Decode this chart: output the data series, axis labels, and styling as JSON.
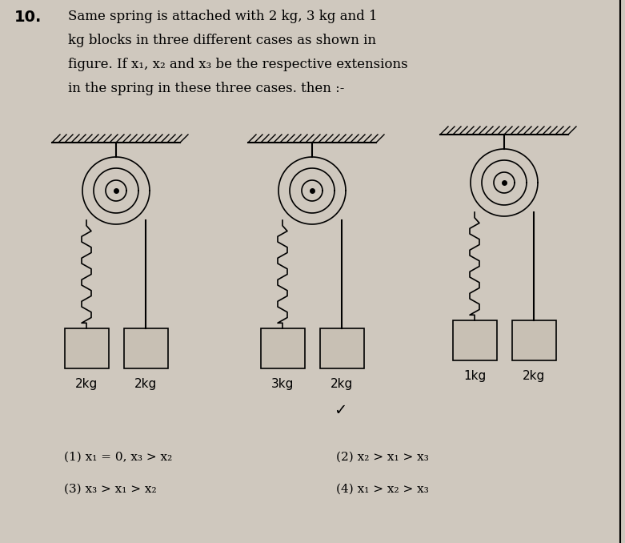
{
  "bg_color": "#cfc8be",
  "title_number": "10.",
  "title_text_lines": [
    "Same spring is attached with 2 kg, 3 kg and 1",
    "kg blocks in three different cases as shown in",
    "figure. If x₁, x₂ and x₃ be the respective extensions",
    "in the spring in these three cases. then :-"
  ],
  "options": [
    "(1) x₁ = 0, x₃ > x₂",
    "(2) x₂ > x₁ > x₃",
    "(3) x₃ > x₁ > x₂",
    "(4) x₁ > x₂ > x₃"
  ],
  "case1_label_left": "2kg",
  "case1_label_right": "2kg",
  "case2_label_left": "3kg",
  "case2_label_right": "2kg",
  "case3_label_left": "1kg",
  "case3_label_right": "2kg"
}
